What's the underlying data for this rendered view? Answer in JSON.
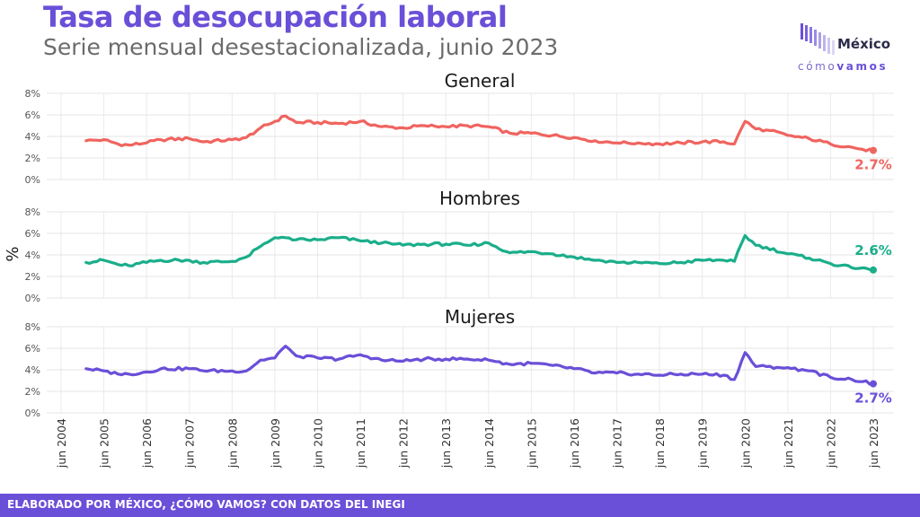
{
  "header": {
    "title": "Tasa de desocupación laboral",
    "subtitle": "Serie mensual desestacionalizada, junio 2023"
  },
  "logo": {
    "name": "México",
    "tagline_a": "cómo",
    "tagline_b": "vamos",
    "colors": [
      "#6a4fd8",
      "#9c8fe0",
      "#c9c2ee"
    ]
  },
  "footer": {
    "text": "ELABORADO POR MÉXICO, ¿CÓMO VAMOS? CON DATOS DEL INEGI",
    "color": "#6a4fd8"
  },
  "chart_data": {
    "type": "line",
    "ylabel": "%",
    "ylim": [
      0,
      8
    ],
    "yticks": [
      "0%",
      "2%",
      "4%",
      "6%",
      "8%"
    ],
    "grid": true,
    "xticks": [
      "jun 2004",
      "jun 2005",
      "jun 2006",
      "jun 2007",
      "jun 2008",
      "jun 2009",
      "jun 2010",
      "jun 2011",
      "jun 2012",
      "jun 2013",
      "jun 2014",
      "jun 2015",
      "jun 2016",
      "jun 2017",
      "jun 2018",
      "jun 2019",
      "jun 2020",
      "jun 2021",
      "jun 2022",
      "jun 2023"
    ],
    "series": [
      {
        "name": "General",
        "color": "#f0645f",
        "end_label": "2.7%",
        "points": [
          [
            "2005-01",
            3.6
          ],
          [
            "2005-06",
            3.7
          ],
          [
            "2005-10",
            3.3
          ],
          [
            "2006-01",
            3.2
          ],
          [
            "2006-06",
            3.4
          ],
          [
            "2006-10",
            3.7
          ],
          [
            "2007-06",
            3.8
          ],
          [
            "2007-10",
            3.5
          ],
          [
            "2008-06",
            3.7
          ],
          [
            "2008-10",
            3.9
          ],
          [
            "2009-02",
            4.8
          ],
          [
            "2009-06",
            5.4
          ],
          [
            "2009-09",
            5.9
          ],
          [
            "2009-12",
            5.3
          ],
          [
            "2010-06",
            5.3
          ],
          [
            "2010-12",
            5.2
          ],
          [
            "2011-06",
            5.4
          ],
          [
            "2011-12",
            4.9
          ],
          [
            "2012-06",
            4.8
          ],
          [
            "2012-12",
            5.0
          ],
          [
            "2013-06",
            4.9
          ],
          [
            "2013-12",
            5.0
          ],
          [
            "2014-06",
            4.9
          ],
          [
            "2014-12",
            4.3
          ],
          [
            "2015-06",
            4.3
          ],
          [
            "2015-12",
            4.1
          ],
          [
            "2016-06",
            3.9
          ],
          [
            "2016-12",
            3.6
          ],
          [
            "2017-06",
            3.4
          ],
          [
            "2017-12",
            3.4
          ],
          [
            "2018-06",
            3.3
          ],
          [
            "2018-12",
            3.4
          ],
          [
            "2019-06",
            3.5
          ],
          [
            "2019-12",
            3.5
          ],
          [
            "2020-03",
            3.3
          ],
          [
            "2020-06",
            5.4
          ],
          [
            "2020-09",
            4.7
          ],
          [
            "2020-12",
            4.6
          ],
          [
            "2021-06",
            4.1
          ],
          [
            "2021-12",
            3.8
          ],
          [
            "2022-06",
            3.3
          ],
          [
            "2022-12",
            3.0
          ],
          [
            "2023-03",
            2.8
          ],
          [
            "2023-06",
            2.7
          ]
        ]
      },
      {
        "name": "Hombres",
        "color": "#1aae8a",
        "end_label": "2.6%",
        "points": [
          [
            "2005-01",
            3.3
          ],
          [
            "2005-06",
            3.5
          ],
          [
            "2005-10",
            3.1
          ],
          [
            "2006-01",
            3.0
          ],
          [
            "2006-06",
            3.3
          ],
          [
            "2006-10",
            3.5
          ],
          [
            "2007-06",
            3.5
          ],
          [
            "2007-10",
            3.3
          ],
          [
            "2008-06",
            3.4
          ],
          [
            "2008-10",
            3.8
          ],
          [
            "2009-02",
            4.8
          ],
          [
            "2009-06",
            5.6
          ],
          [
            "2009-09",
            5.6
          ],
          [
            "2009-12",
            5.4
          ],
          [
            "2010-06",
            5.4
          ],
          [
            "2010-12",
            5.6
          ],
          [
            "2011-06",
            5.3
          ],
          [
            "2011-12",
            5.1
          ],
          [
            "2012-06",
            4.9
          ],
          [
            "2012-12",
            5.0
          ],
          [
            "2013-06",
            5.0
          ],
          [
            "2013-12",
            4.9
          ],
          [
            "2014-06",
            5.1
          ],
          [
            "2014-12",
            4.2
          ],
          [
            "2015-06",
            4.3
          ],
          [
            "2015-12",
            4.1
          ],
          [
            "2016-06",
            3.8
          ],
          [
            "2016-12",
            3.5
          ],
          [
            "2017-06",
            3.3
          ],
          [
            "2017-12",
            3.3
          ],
          [
            "2018-06",
            3.2
          ],
          [
            "2018-12",
            3.3
          ],
          [
            "2019-06",
            3.5
          ],
          [
            "2019-12",
            3.5
          ],
          [
            "2020-03",
            3.4
          ],
          [
            "2020-06",
            5.8
          ],
          [
            "2020-09",
            4.9
          ],
          [
            "2020-12",
            4.7
          ],
          [
            "2021-06",
            4.1
          ],
          [
            "2021-12",
            3.7
          ],
          [
            "2022-06",
            3.2
          ],
          [
            "2022-12",
            2.8
          ],
          [
            "2023-03",
            2.8
          ],
          [
            "2023-06",
            2.6
          ]
        ]
      },
      {
        "name": "Mujeres",
        "color": "#6a4fd8",
        "end_label": "2.7%",
        "points": [
          [
            "2005-01",
            4.1
          ],
          [
            "2005-06",
            3.9
          ],
          [
            "2005-10",
            3.6
          ],
          [
            "2006-01",
            3.6
          ],
          [
            "2006-06",
            3.8
          ],
          [
            "2006-10",
            4.1
          ],
          [
            "2007-06",
            4.1
          ],
          [
            "2007-10",
            3.9
          ],
          [
            "2008-06",
            3.9
          ],
          [
            "2008-10",
            3.9
          ],
          [
            "2009-02",
            4.9
          ],
          [
            "2009-06",
            5.1
          ],
          [
            "2009-09",
            6.2
          ],
          [
            "2009-12",
            5.3
          ],
          [
            "2010-06",
            5.1
          ],
          [
            "2010-12",
            5.0
          ],
          [
            "2011-06",
            5.4
          ],
          [
            "2011-12",
            4.9
          ],
          [
            "2012-06",
            4.8
          ],
          [
            "2012-12",
            5.0
          ],
          [
            "2013-06",
            5.0
          ],
          [
            "2013-12",
            5.0
          ],
          [
            "2014-06",
            4.9
          ],
          [
            "2014-12",
            4.5
          ],
          [
            "2015-06",
            4.6
          ],
          [
            "2015-12",
            4.4
          ],
          [
            "2016-06",
            4.1
          ],
          [
            "2016-12",
            3.7
          ],
          [
            "2017-06",
            3.7
          ],
          [
            "2017-12",
            3.6
          ],
          [
            "2018-06",
            3.5
          ],
          [
            "2018-12",
            3.6
          ],
          [
            "2019-06",
            3.6
          ],
          [
            "2019-12",
            3.5
          ],
          [
            "2020-03",
            3.1
          ],
          [
            "2020-06",
            5.6
          ],
          [
            "2020-09",
            4.3
          ],
          [
            "2020-12",
            4.3
          ],
          [
            "2021-06",
            4.2
          ],
          [
            "2021-12",
            3.9
          ],
          [
            "2022-06",
            3.3
          ],
          [
            "2022-12",
            3.1
          ],
          [
            "2023-03",
            2.9
          ],
          [
            "2023-06",
            2.7
          ]
        ]
      }
    ]
  }
}
